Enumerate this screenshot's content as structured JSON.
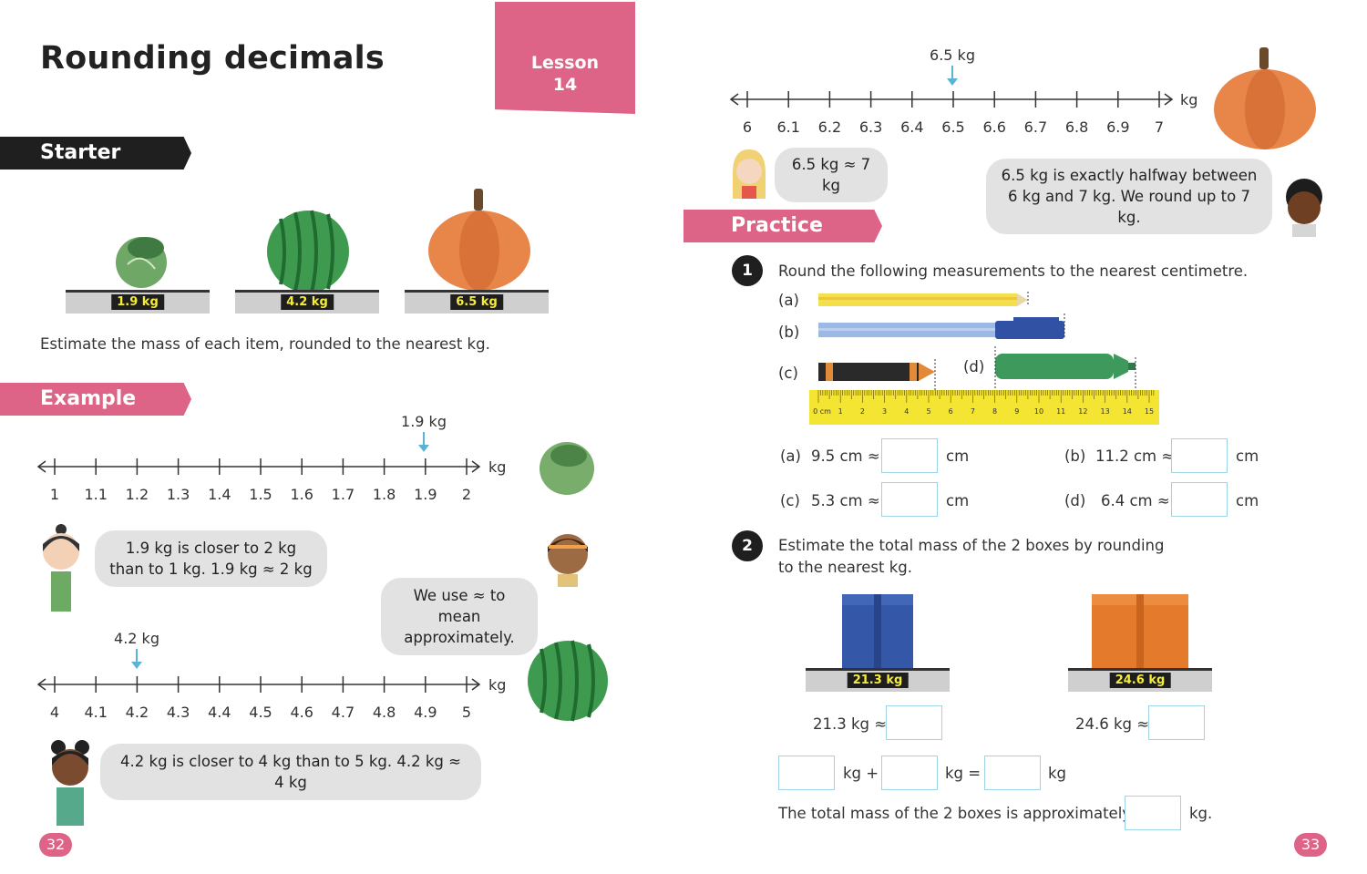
{
  "title": "Rounding decimals",
  "lesson": {
    "line1": "Lesson",
    "line2": "14"
  },
  "sections": {
    "starter": "Starter",
    "example": "Example",
    "practice": "Practice"
  },
  "starter": {
    "scales": [
      "1.9 kg",
      "4.2 kg",
      "6.5 kg"
    ],
    "instruction": "Estimate the mass of each item, rounded to the nearest kg."
  },
  "example": {
    "line1": {
      "marker": "1.9 kg",
      "ticks": [
        "1",
        "1.1",
        "1.2",
        "1.3",
        "1.4",
        "1.5",
        "1.6",
        "1.7",
        "1.8",
        "1.9",
        "2"
      ],
      "unit": "kg"
    },
    "bubble1": {
      "l1": "1.9 kg is closer to 2 kg",
      "l2": "than to 1 kg. 1.9 kg ≈ 2 kg"
    },
    "bubble2": {
      "l1": "We use ≈ to mean",
      "l2": "approximately."
    },
    "line2": {
      "marker": "4.2 kg",
      "ticks": [
        "4",
        "4.1",
        "4.2",
        "4.3",
        "4.4",
        "4.5",
        "4.6",
        "4.7",
        "4.8",
        "4.9",
        "5"
      ],
      "unit": "kg"
    },
    "bubble3": "4.2 kg is closer to 4 kg than to 5 kg. 4.2 kg ≈ 4 kg"
  },
  "right_top": {
    "line": {
      "marker": "6.5 kg",
      "ticks": [
        "6",
        "6.1",
        "6.2",
        "6.3",
        "6.4",
        "6.5",
        "6.6",
        "6.7",
        "6.8",
        "6.9",
        "7"
      ],
      "unit": "kg"
    },
    "bubble1": "6.5 kg ≈ 7 kg",
    "bubble2": {
      "l1": "6.5 kg is exactly halfway between",
      "l2": "6 kg and 7 kg. We round up to 7 kg."
    }
  },
  "q1": {
    "number": "1",
    "prompt": "Round the following measurements to the nearest centimetre.",
    "labels": [
      "(a)",
      "(b)",
      "(c)",
      "(d)"
    ],
    "ruler_ticks": [
      "0 cm",
      "1",
      "2",
      "3",
      "4",
      "5",
      "6",
      "7",
      "8",
      "9",
      "10",
      "11",
      "12",
      "13",
      "14",
      "15"
    ],
    "answers": [
      {
        "label": "(a)",
        "value": "9.5 cm ≈",
        "unit": "cm"
      },
      {
        "label": "(b)",
        "value": "11.2 cm ≈",
        "unit": "cm"
      },
      {
        "label": "(c)",
        "value": "5.3 cm ≈",
        "unit": "cm"
      },
      {
        "label": "(d)",
        "value": "6.4 cm ≈",
        "unit": "cm"
      }
    ]
  },
  "q2": {
    "number": "2",
    "prompt_l1": "Estimate the total mass of the 2 boxes by rounding",
    "prompt_l2": "to the nearest kg.",
    "scales": [
      "21.3 kg",
      "24.6 kg"
    ],
    "approx": [
      "21.3 kg ≈",
      "24.6 kg ≈"
    ],
    "eq": {
      "plus": "kg +",
      "equals": "kg =",
      "unit": "kg"
    },
    "final": "The total mass of the 2 boxes is approximately",
    "final_unit": "kg."
  },
  "page_numbers": {
    "left": "32",
    "right": "33"
  },
  "colors": {
    "accent": "#dd6486",
    "arrow": "#5ab4d4",
    "box_blue": "#3557a8",
    "box_orange": "#e47a2c"
  }
}
